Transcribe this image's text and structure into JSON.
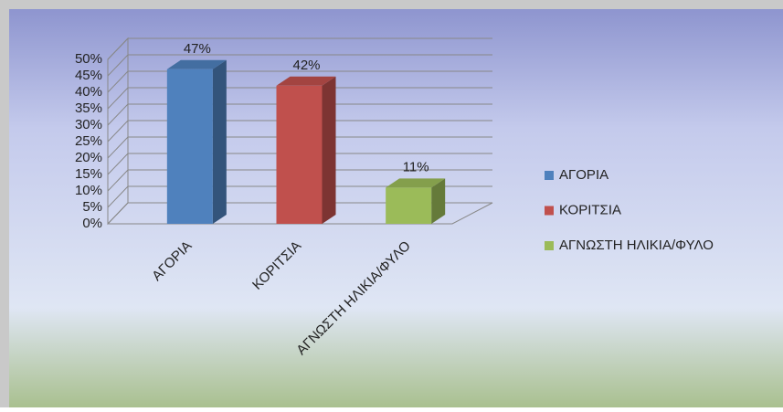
{
  "chart_data": {
    "type": "bar3d",
    "categories": [
      "ΑΓΟΡΙΑ",
      "ΚΟΡΙΤΣΙΑ",
      "ΑΓΝΩΣΤΗ ΗΛΙΚΙΑ/ΦΥΛΟ"
    ],
    "values": [
      47,
      42,
      11
    ],
    "value_labels": [
      "47%",
      "42%",
      "11%"
    ],
    "colors": [
      "#4f81bd",
      "#c0504d",
      "#9bbb59"
    ],
    "ylim": [
      0,
      50
    ],
    "yticks": [
      {
        "value": 0,
        "label": "0%"
      },
      {
        "value": 5,
        "label": "5%"
      },
      {
        "value": 10,
        "label": "10%"
      },
      {
        "value": 15,
        "label": "15%"
      },
      {
        "value": 20,
        "label": "20%"
      },
      {
        "value": 25,
        "label": "25%"
      },
      {
        "value": 30,
        "label": "30%"
      },
      {
        "value": 35,
        "label": "35%"
      },
      {
        "value": 40,
        "label": "40%"
      },
      {
        "value": 45,
        "label": "45%"
      },
      {
        "value": 50,
        "label": "50%"
      }
    ],
    "grid": true,
    "legend": "right"
  }
}
